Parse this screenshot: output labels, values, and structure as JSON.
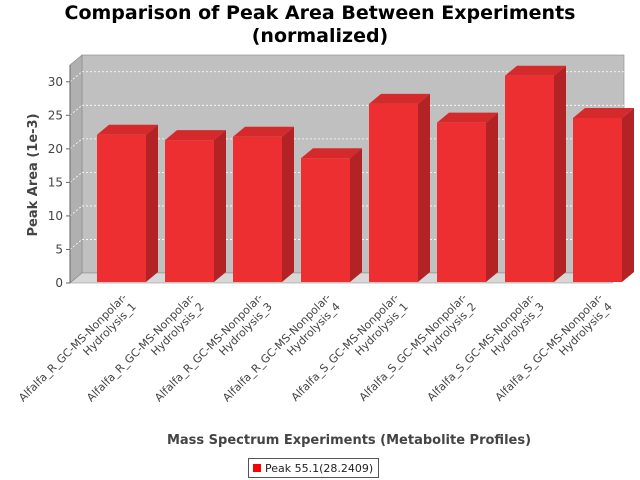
{
  "chart_title": {
    "line1": "Comparison of Peak Area Between Experiments",
    "line2": "(normalized)"
  },
  "legend": {
    "label": "Peak 55.1(28.2409)"
  },
  "colors": {
    "bar": "#ee2f32",
    "plot_back": "#c0c0c0",
    "plot_floor": "#d8d8d8"
  },
  "chart_data": {
    "type": "bar",
    "title": "Comparison of Peak Area Between Experiments (normalized)",
    "xlabel": "Mass Spectrum Experiments (Metabolite Profiles)",
    "ylabel": "Peak Area (1e-3)",
    "ylim": [
      0,
      32.5
    ],
    "yticks": [
      0,
      5,
      10,
      15,
      20,
      25,
      30
    ],
    "grid": true,
    "legend_position": "bottom",
    "categories": [
      [
        "Alfalfa_R_GC-MS-Nonpolar-",
        "Hydrolysis_1"
      ],
      [
        "Alfalfa_R_GC-MS-Nonpolar-",
        "Hydrolysis_2"
      ],
      [
        "Alfalfa_R_GC-MS-Nonpolar-",
        "Hydrolysis_3"
      ],
      [
        "Alfalfa_R_GC-MS-Nonpolar-",
        "Hydrolysis_4"
      ],
      [
        "Alfalfa_S_GC-MS-Nonpolar-",
        "Hydrolysis_1"
      ],
      [
        "Alfalfa_S_GC-MS-Nonpolar-",
        "Hydrolysis_2"
      ],
      [
        "Alfalfa_S_GC-MS-Nonpolar-",
        "Hydrolysis_3"
      ],
      [
        "Alfalfa_S_GC-MS-Nonpolar-",
        "Hydrolysis_4"
      ]
    ],
    "series": [
      {
        "name": "Peak 55.1(28.2409)",
        "values": [
          22.1,
          21.3,
          21.8,
          18.6,
          26.7,
          23.9,
          30.9,
          24.6
        ]
      }
    ]
  }
}
